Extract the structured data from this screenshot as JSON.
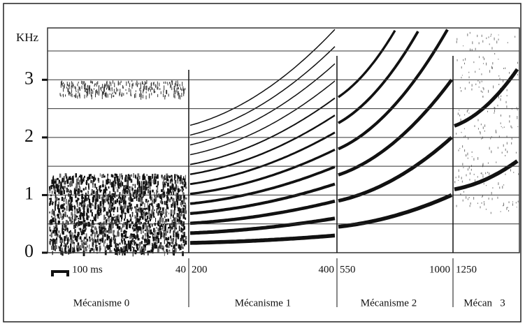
{
  "chart_data": {
    "type": "spectrogram",
    "y_unit": "KHz",
    "ylim": [
      0,
      3.9
    ],
    "yticks": [
      0,
      1,
      2,
      3
    ],
    "grid_lines": [
      0.5,
      1,
      1.5,
      2,
      2.5,
      3,
      3.5
    ],
    "scale_bar": "100 ms",
    "boundary_labels": [
      [
        "40",
        "200"
      ],
      [
        "400",
        "550"
      ],
      [
        "1000",
        "1250"
      ]
    ],
    "mechanisms": [
      "Mécanisme 0",
      "Mécanisme 1",
      "Mécanisme 2",
      "Mécan   3"
    ]
  }
}
